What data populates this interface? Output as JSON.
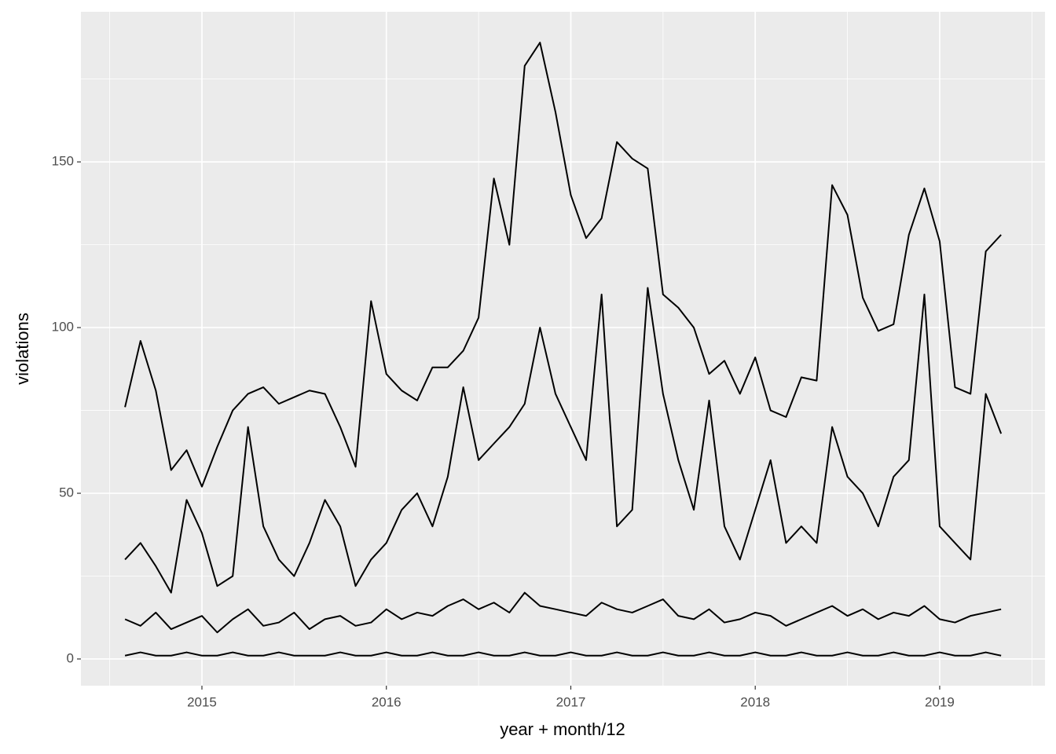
{
  "chart_data": {
    "type": "line",
    "x_label": "year + month/12",
    "y_label": "violations",
    "x": [
      2014.583,
      2014.667,
      2014.75,
      2014.833,
      2014.917,
      2015,
      2015.083,
      2015.167,
      2015.25,
      2015.333,
      2015.417,
      2015.5,
      2015.583,
      2015.667,
      2015.75,
      2015.833,
      2015.917,
      2016,
      2016.083,
      2016.167,
      2016.25,
      2016.333,
      2016.417,
      2016.5,
      2016.583,
      2016.667,
      2016.75,
      2016.833,
      2016.917,
      2017,
      2017.083,
      2017.167,
      2017.25,
      2017.333,
      2017.417,
      2017.5,
      2017.583,
      2017.667,
      2017.75,
      2017.833,
      2017.917,
      2018,
      2018.083,
      2018.167,
      2018.25,
      2018.333,
      2018.417,
      2018.5,
      2018.583,
      2018.667,
      2018.75,
      2018.833,
      2018.917,
      2019,
      2019.083,
      2019.167,
      2019.25,
      2019.333
    ],
    "series": [
      {
        "color": "#000000",
        "values": [
          76,
          96,
          81,
          57,
          63,
          52,
          64,
          75,
          80,
          82,
          77,
          79,
          81,
          80,
          70,
          58,
          108,
          86,
          81,
          78,
          88,
          88,
          93,
          103,
          145,
          125,
          179,
          186,
          165,
          140,
          127,
          133,
          156,
          151,
          148,
          110,
          106,
          100,
          86,
          90,
          80,
          91,
          75,
          73,
          85,
          84,
          143,
          134,
          109,
          99,
          101,
          128,
          142,
          126,
          82,
          80,
          123,
          128
        ]
      },
      {
        "color": "#000000",
        "values": [
          30,
          35,
          28,
          20,
          48,
          38,
          22,
          25,
          70,
          40,
          30,
          25,
          35,
          48,
          40,
          22,
          30,
          35,
          45,
          50,
          40,
          55,
          82,
          60,
          65,
          70,
          77,
          100,
          80,
          70,
          60,
          110,
          40,
          45,
          112,
          80,
          60,
          45,
          78,
          40,
          30,
          45,
          60,
          35,
          40,
          35,
          70,
          55,
          50,
          40,
          55,
          60,
          110,
          40,
          35,
          30,
          80,
          68
        ]
      },
      {
        "color": "#000000",
        "values": [
          12,
          10,
          14,
          9,
          11,
          13,
          8,
          12,
          15,
          10,
          11,
          14,
          9,
          12,
          13,
          10,
          11,
          15,
          12,
          14,
          13,
          16,
          18,
          15,
          17,
          14,
          20,
          16,
          15,
          14,
          13,
          17,
          15,
          14,
          16,
          18,
          13,
          12,
          15,
          11,
          12,
          14,
          13,
          10,
          12,
          14,
          16,
          13,
          15,
          12,
          14,
          13,
          16,
          12,
          11,
          13,
          14,
          15
        ]
      },
      {
        "color": "#000000",
        "values": [
          1,
          2,
          1,
          1,
          2,
          1,
          1,
          2,
          1,
          1,
          2,
          1,
          1,
          1,
          2,
          1,
          1,
          2,
          1,
          1,
          2,
          1,
          1,
          2,
          1,
          1,
          2,
          1,
          1,
          2,
          1,
          1,
          2,
          1,
          1,
          2,
          1,
          1,
          2,
          1,
          1,
          2,
          1,
          1,
          2,
          1,
          1,
          2,
          1,
          1,
          2,
          1,
          1,
          2,
          1,
          1,
          2,
          1
        ]
      }
    ],
    "xlim": [
      2014.344,
      2019.571
    ],
    "xticks": [
      2015,
      2016,
      2017,
      2018,
      2019
    ],
    "ylim": [
      -8.06,
      195.3
    ],
    "yticks": [
      0,
      50,
      100,
      150
    ],
    "grid": true
  }
}
